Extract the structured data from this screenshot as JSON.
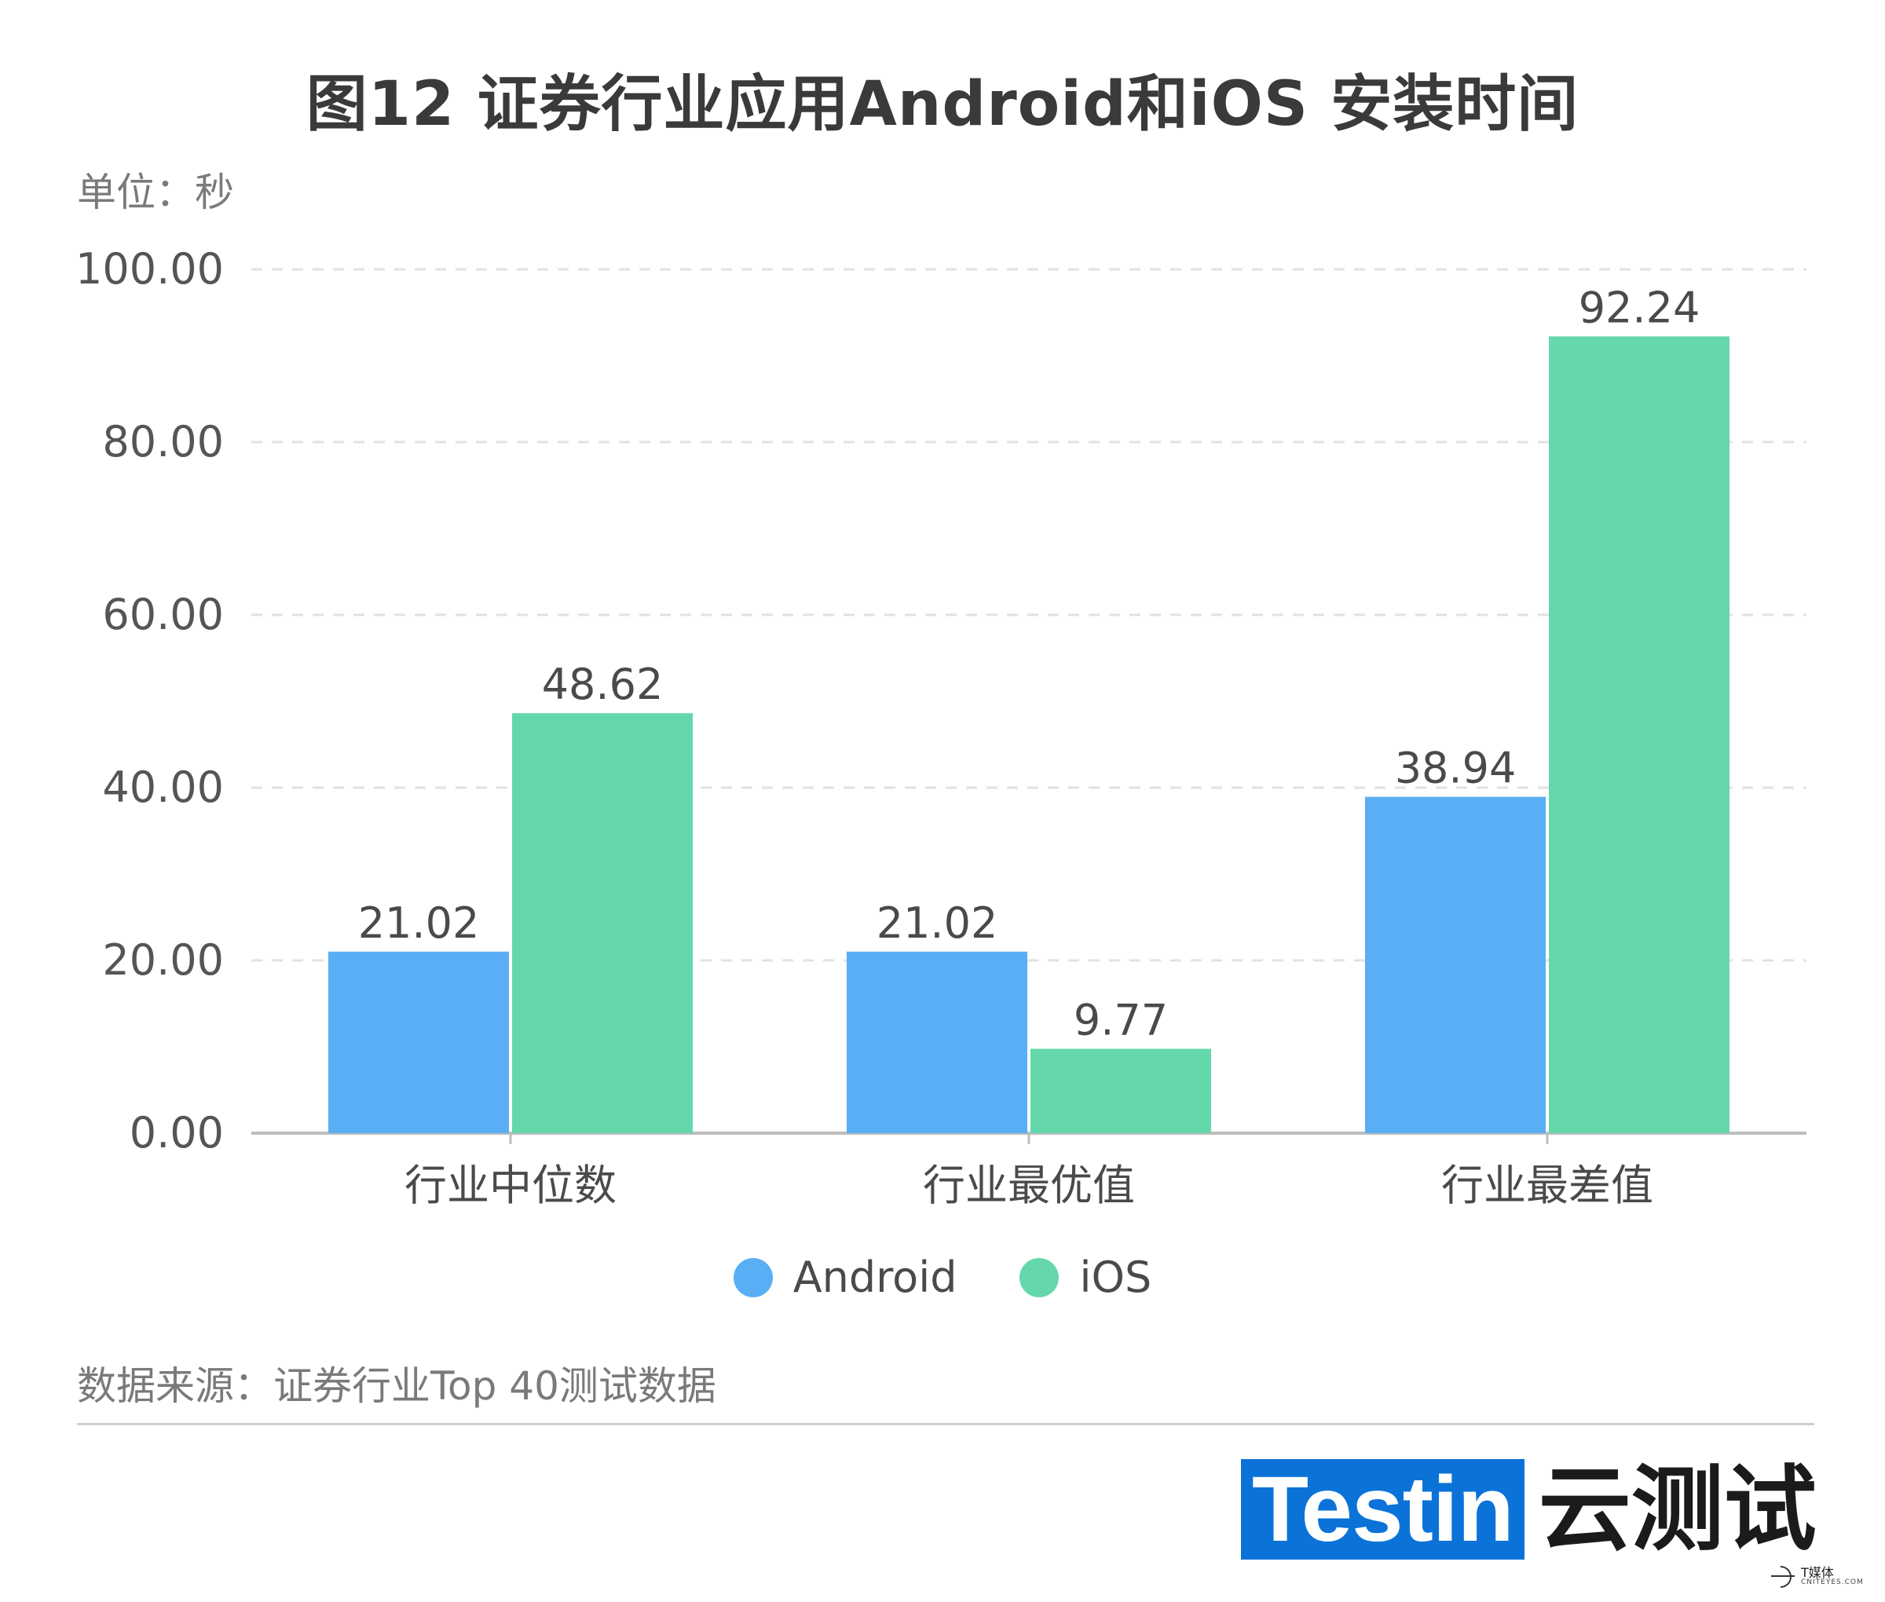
{
  "chart_data": {
    "type": "bar",
    "title": "图12 证券行业应用Android和iOS 安装时间",
    "unit_label": "单位：秒",
    "categories": [
      "行业中位数",
      "行业最优值",
      "行业最差值"
    ],
    "series": [
      {
        "name": "Android",
        "values": [
          21.02,
          21.02,
          38.94
        ],
        "labels": [
          "21.02",
          "21.02",
          "38.94"
        ],
        "color": "#5aaef5"
      },
      {
        "name": "iOS",
        "values": [
          48.62,
          9.77,
          92.24
        ],
        "labels": [
          "48.62",
          "9.77",
          "92.24"
        ],
        "color": "#64d8ab"
      }
    ],
    "ylim": [
      0,
      100
    ],
    "yticks": [
      "0.00",
      "20.00",
      "40.00",
      "60.00",
      "80.00",
      "100.00"
    ],
    "grid": true,
    "legend_position": "bottom-center"
  },
  "source": "数据来源：证券行业Top 40测试数据",
  "logo": {
    "brand": "Testin",
    "brand_cn": "云测试",
    "color": "#0b73d8"
  },
  "watermark": {
    "cn": "T媒体",
    "en": "CNITEYES.COM"
  }
}
